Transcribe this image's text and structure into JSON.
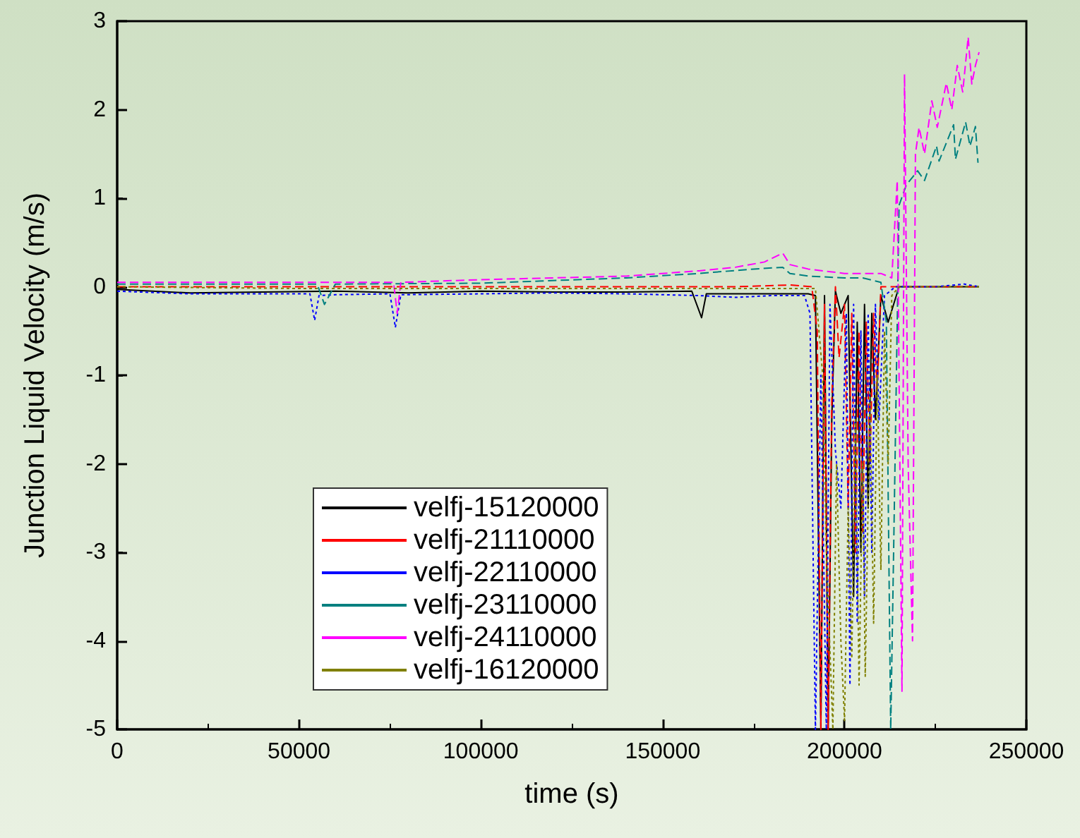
{
  "chart_data": {
    "type": "line",
    "xlabel": "time (s)",
    "ylabel": "Junction Liquid Velocity (m/s)",
    "xlim": [
      0,
      250000
    ],
    "xticks": [
      0,
      50000,
      100000,
      150000,
      200000,
      250000
    ],
    "ylim": [
      -5,
      3
    ],
    "yticks": [
      -5,
      -4,
      -3,
      -2,
      -1,
      0,
      1,
      2,
      3
    ],
    "grid": false,
    "legend": "bottom left",
    "series": [
      {
        "name": "velfj-15120000",
        "color": "#000000",
        "line_style": "solid",
        "x": [
          0,
          20000,
          40000,
          60000,
          80000,
          100000,
          120000,
          140000,
          158000,
          160700,
          162000,
          180000,
          190000,
          192000,
          193500,
          194500,
          195500,
          196500,
          197500,
          199000,
          201000,
          202500,
          203500,
          204500,
          205500,
          206500,
          207500,
          208500,
          210000,
          212000,
          215000,
          225000,
          237000
        ],
        "values": [
          -0.03,
          -0.07,
          -0.06,
          -0.05,
          -0.07,
          -0.05,
          -0.06,
          -0.06,
          -0.05,
          -0.35,
          -0.08,
          -0.08,
          -0.08,
          -0.1,
          -5,
          -0.1,
          -5,
          -1.5,
          -0.05,
          -0.3,
          -0.1,
          -3.5,
          -0.4,
          -3,
          -0.2,
          -2.5,
          -0.3,
          -1.5,
          -0.1,
          -0.4,
          0,
          0,
          0
        ]
      },
      {
        "name": "velfj-21110000",
        "color": "#ff0000",
        "line_style": "dashed",
        "x": [
          0,
          50000,
          100000,
          150000,
          170000,
          185000,
          191000,
          192500,
          193500,
          194500,
          195500,
          196500,
          197500,
          198500,
          200000,
          201000,
          202000,
          203000,
          204000,
          205000,
          206000,
          207000,
          208000,
          209000,
          210000,
          212000,
          215000,
          225000,
          237000
        ],
        "values": [
          0,
          0,
          0,
          0,
          0,
          0.02,
          0,
          -0.5,
          -5,
          -0.2,
          -5,
          -1.3,
          0,
          -0.8,
          -0.2,
          -2.5,
          -0.3,
          -3,
          -0.5,
          -2.8,
          -0.4,
          -2,
          -0.3,
          -1.2,
          0,
          0,
          0,
          0,
          0
        ]
      },
      {
        "name": "velfj-22110000",
        "color": "#0000ff",
        "line_style": "dotted",
        "x": [
          0,
          20000,
          40000,
          53000,
          54300,
          55500,
          60000,
          75000,
          76500,
          78000,
          100000,
          120000,
          140000,
          160000,
          170000,
          180000,
          189000,
          190500,
          192000,
          193500,
          195000,
          196000,
          197500,
          199000,
          200500,
          201500,
          202500,
          203500,
          204500,
          205500,
          206500,
          207500,
          208500,
          209500,
          211000,
          214000,
          225000,
          233000,
          237000
        ],
        "values": [
          -0.05,
          -0.08,
          -0.08,
          -0.08,
          -0.38,
          -0.1,
          -0.09,
          -0.08,
          -0.46,
          -0.09,
          -0.08,
          -0.07,
          -0.08,
          -0.1,
          -0.12,
          -0.1,
          -0.1,
          -0.3,
          -5,
          -1,
          -5,
          -0.2,
          -1.85,
          -2.5,
          -0.3,
          -4.5,
          -0.2,
          -3.8,
          -0.5,
          -3.5,
          -0.3,
          -3,
          -0.2,
          -1.5,
          -0.1,
          0,
          0,
          0.03,
          0
        ]
      },
      {
        "name": "velfj-23110000",
        "color": "#008080",
        "line_style": "dashed",
        "x": [
          0,
          40000,
          55000,
          57000,
          60000,
          100000,
          140000,
          160000,
          175000,
          183000,
          185000,
          190000,
          200000,
          205000,
          210000,
          211500,
          212700,
          213500,
          215000,
          217000,
          220100,
          222000,
          225300,
          226000,
          230000,
          230500,
          233300,
          234500,
          236000,
          236700
        ],
        "values": [
          0.03,
          0.03,
          0.03,
          -0.2,
          0.03,
          0.04,
          0.1,
          0.15,
          0.2,
          0.22,
          0.15,
          0.12,
          0.1,
          0.1,
          0.05,
          -0.4,
          -5,
          -3,
          0.92,
          1.15,
          1.31,
          1.2,
          1.59,
          1.42,
          1.83,
          1.44,
          1.86,
          1.59,
          1.81,
          1.4
        ]
      },
      {
        "name": "velfj-24110000",
        "color": "#ff00ff",
        "line_style": "dashed",
        "x": [
          0,
          50000,
          76000,
          77000,
          78000,
          100000,
          120000,
          140000,
          160000,
          170000,
          178000,
          183000,
          185000,
          190000,
          200000,
          210000,
          213000,
          214500,
          215800,
          216500,
          217500,
          218700,
          219500,
          220500,
          222000,
          224000,
          225500,
          228000,
          229500,
          231000,
          232500,
          234000,
          235000,
          236000,
          237000
        ],
        "values": [
          0.05,
          0.05,
          0.05,
          -0.3,
          0.05,
          0.08,
          0.1,
          0.12,
          0.18,
          0.22,
          0.28,
          0.38,
          0.25,
          0.2,
          0.15,
          0.15,
          0.1,
          1.2,
          -4.57,
          2.4,
          -2,
          -4,
          1.5,
          1.8,
          1.5,
          2.1,
          1.8,
          2.3,
          2,
          2.5,
          2.2,
          2.82,
          2.29,
          2.5,
          2.65
        ]
      },
      {
        "name": "velfj-16120000",
        "color": "#808000",
        "line_style": "dotted",
        "x": [
          0,
          50000,
          100000,
          150000,
          180000,
          192000,
          194000,
          195000,
          196800,
          197800,
          199000,
          200000,
          201000,
          202000,
          203000,
          204000,
          205000,
          205700,
          207000,
          208000,
          209000,
          210000,
          211000,
          212000,
          213000,
          215000,
          225000,
          237000
        ],
        "values": [
          0,
          -0.02,
          -0.02,
          -0.02,
          -0.02,
          -0.02,
          -1,
          -3,
          -5,
          -2,
          -4,
          -4.9,
          -2.5,
          -4.2,
          -1.5,
          -4.5,
          -2,
          -4.4,
          -1.2,
          -3.8,
          -1,
          -3.2,
          -0.5,
          -2,
          -0.1,
          0,
          0,
          0
        ]
      }
    ]
  }
}
